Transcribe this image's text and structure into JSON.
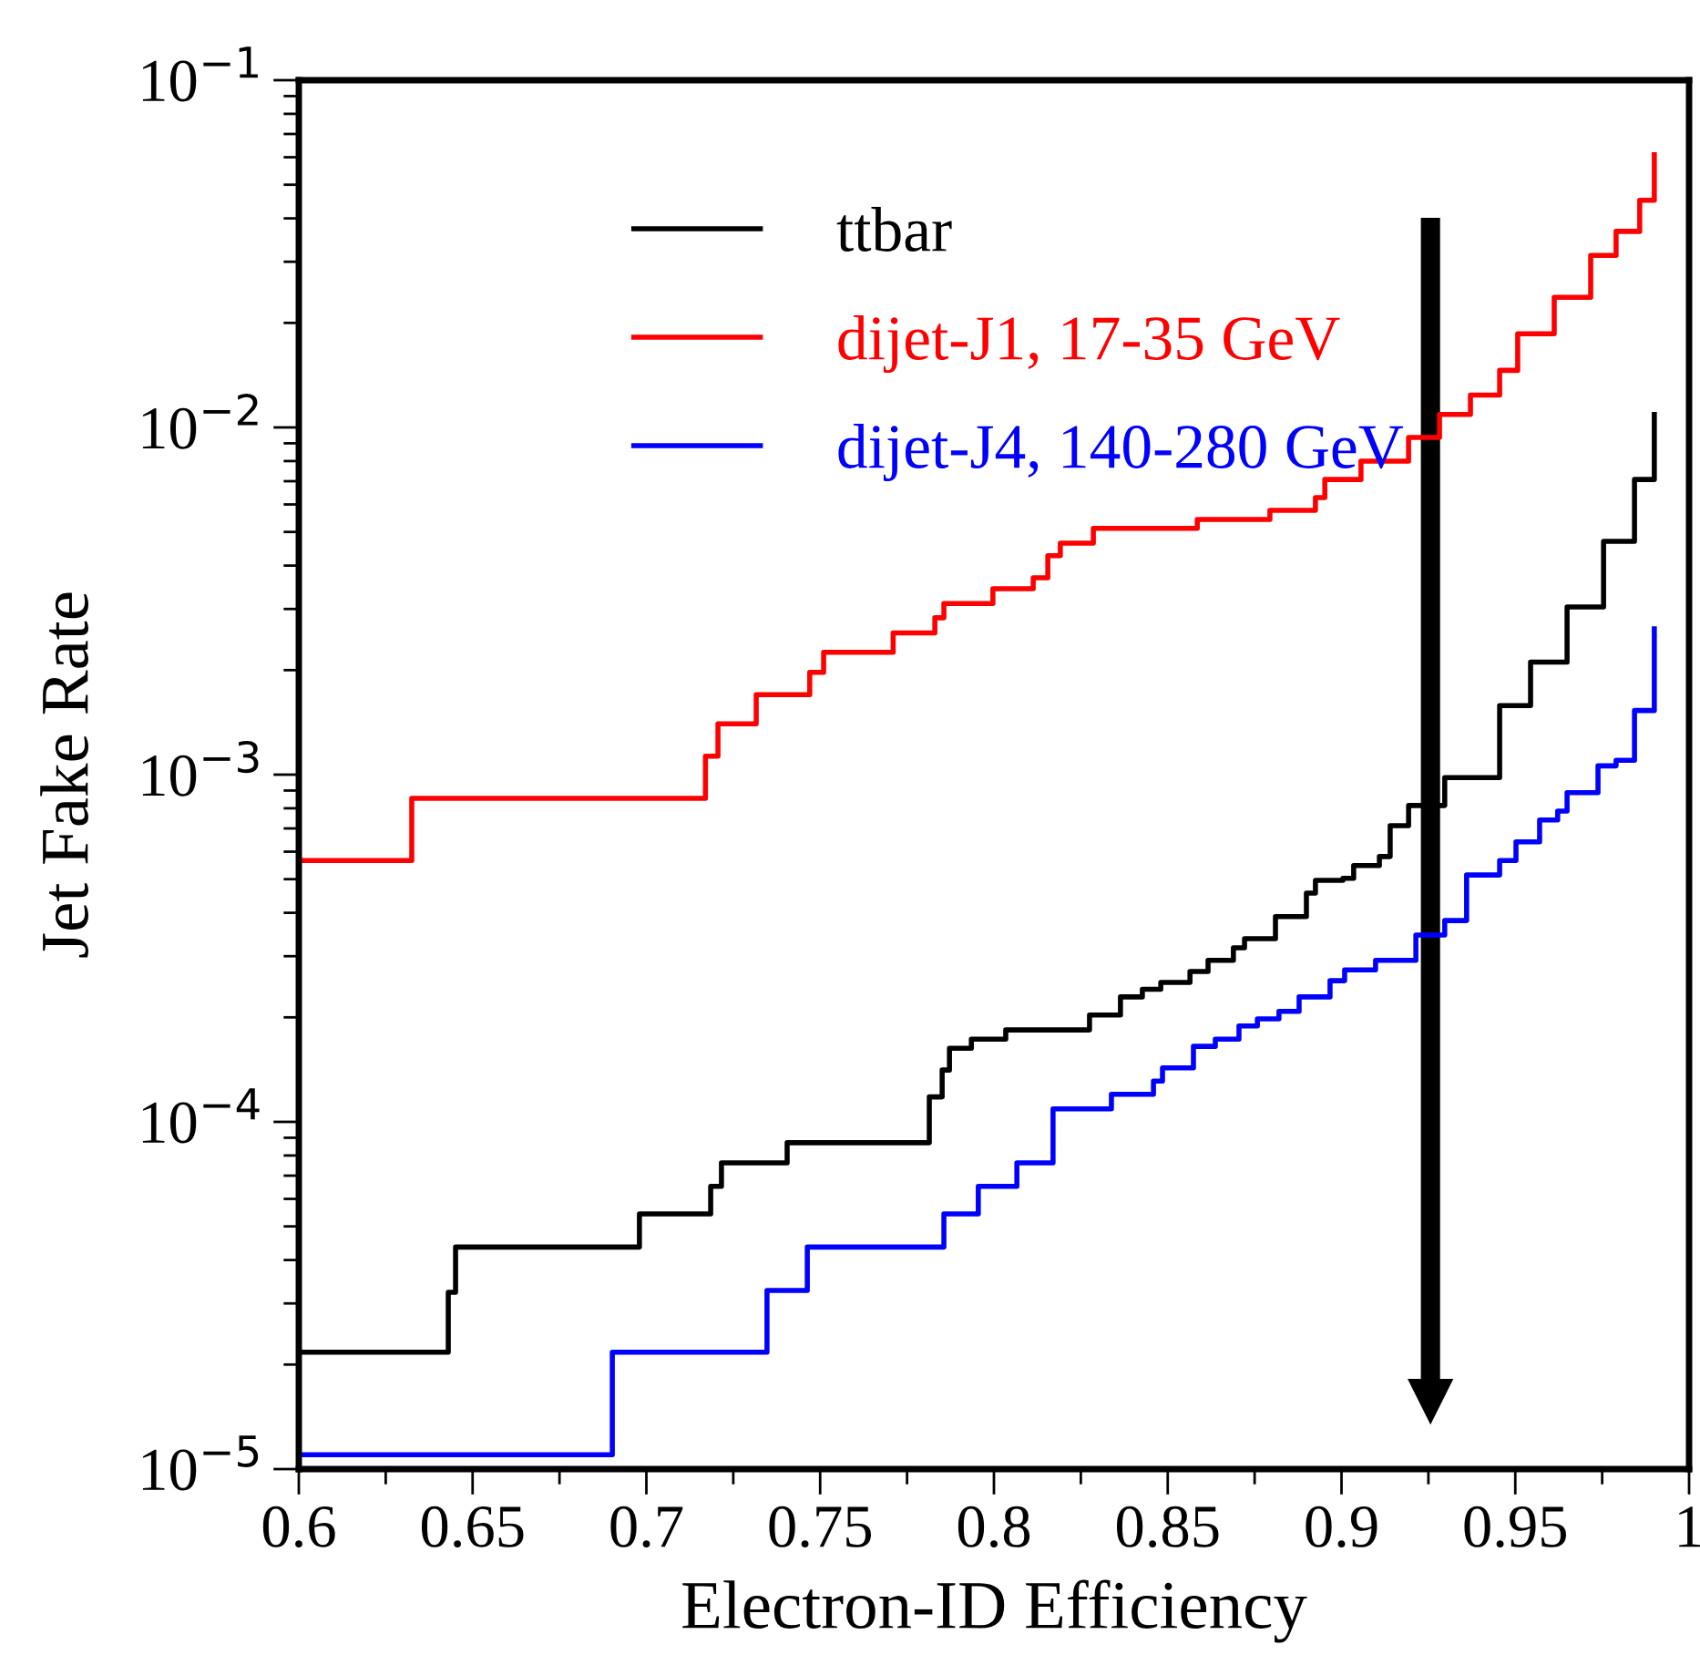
{
  "chart_data": {
    "type": "step",
    "xlabel": "Electron-ID Efficiency",
    "ylabel": "Jet Fake Rate",
    "log": "y",
    "grid": false,
    "legend": "top left",
    "line_style": "solid",
    "marker": "none",
    "xlim": [
      0.6,
      1.0
    ],
    "xticks": [
      0.6,
      0.65,
      0.7,
      0.75,
      0.8,
      0.85,
      0.9,
      0.95,
      {
        "value": 1.0,
        "label": "1"
      }
    ],
    "ylim": [
      1e-05,
      0.1
    ],
    "yticks": [
      {
        "value": 1e-05,
        "label": "10$^{−5}$"
      },
      {
        "value": 0.0001,
        "label": "10$^{−4}$"
      },
      {
        "value": 0.001,
        "label": "10$^{−3}$"
      },
      {
        "value": 0.01,
        "label": "10$^{−2}$"
      },
      {
        "value": 0.1,
        "label": "10$^{−1}$"
      }
    ],
    "series": [
      {
        "name": "ttbar",
        "color": "#000000",
        "x": [
          0.6,
          0.643,
          0.6451,
          0.698,
          0.7185,
          0.7216,
          0.7405,
          0.7814,
          0.7851,
          0.7872,
          0.7935,
          0.8034,
          0.8275,
          0.8364,
          0.8427,
          0.848,
          0.8564,
          0.8616,
          0.8689,
          0.8721,
          0.881,
          0.8899,
          0.8925,
          0.9004,
          0.9035,
          0.9109,
          0.914,
          0.9193,
          0.9297,
          0.9455,
          0.9544,
          0.9649,
          0.9754,
          0.9843,
          0.99
        ],
        "values": [
          2.17e-05,
          3.23e-05,
          4.36e-05,
          5.43e-05,
          6.52e-05,
          7.62e-05,
          8.71e-05,
          0.000118,
          0.000141,
          0.000163,
          0.000173,
          0.000184,
          0.000203,
          0.000229,
          0.000241,
          0.000252,
          0.000271,
          0.000292,
          0.000317,
          0.000337,
          0.00039,
          0.000456,
          0.000496,
          0.000503,
          0.000547,
          0.000581,
          0.000713,
          0.000815,
          0.00098,
          0.00158,
          0.00211,
          0.00304,
          0.0047,
          0.00708,
          0.0109
        ]
      },
      {
        "name": "dijet-J1, 17-35 GeV",
        "color": "#ff0000",
        "x": [
          0.6,
          0.6325,
          0.717,
          0.7206,
          0.7316,
          0.747,
          0.751,
          0.771,
          0.783,
          0.7856,
          0.7997,
          0.8113,
          0.8155,
          0.8191,
          0.8286,
          0.8585,
          0.8794,
          0.8925,
          0.8952,
          0.9056,
          0.9193,
          0.9282,
          0.9371,
          0.9455,
          0.9507,
          0.9612,
          0.9717,
          0.979,
          0.9858,
          0.99
        ],
        "values": [
          0.000566,
          0.000855,
          0.00113,
          0.0014,
          0.0017,
          0.00197,
          0.00225,
          0.00256,
          0.00283,
          0.00311,
          0.00343,
          0.00369,
          0.00427,
          0.00464,
          0.00512,
          0.00543,
          0.00577,
          0.00628,
          0.00708,
          0.008,
          0.00936,
          0.0109,
          0.0124,
          0.0146,
          0.0186,
          0.0237,
          0.0313,
          0.0367,
          0.0451,
          0.061
        ]
      },
      {
        "name": "dijet-J4, 140-280 GeV",
        "color": "#0000ff",
        "x": [
          0.6,
          0.6902,
          0.7347,
          0.7463,
          0.7856,
          0.7955,
          0.8066,
          0.817,
          0.8338,
          0.8459,
          0.8485,
          0.8574,
          0.8637,
          0.8705,
          0.8758,
          0.882,
          0.8878,
          0.8967,
          0.9009,
          0.9098,
          0.9214,
          0.9297,
          0.936,
          0.9455,
          0.9502,
          0.957,
          0.9622,
          0.9649,
          0.9738,
          0.979,
          0.9843,
          0.99
        ],
        "values": [
          1.1e-05,
          2.17e-05,
          3.27e-05,
          4.36e-05,
          5.43e-05,
          6.52e-05,
          7.62e-05,
          0.000109,
          0.00012,
          0.000131,
          0.000143,
          0.000165,
          0.000173,
          0.000189,
          0.000198,
          0.000208,
          0.000229,
          0.000255,
          0.000274,
          0.000292,
          0.000345,
          0.00038,
          0.000514,
          0.000566,
          0.00064,
          0.00074,
          0.000785,
          0.000887,
          0.00106,
          0.0011,
          0.00153,
          0.00263
        ]
      }
    ]
  }
}
